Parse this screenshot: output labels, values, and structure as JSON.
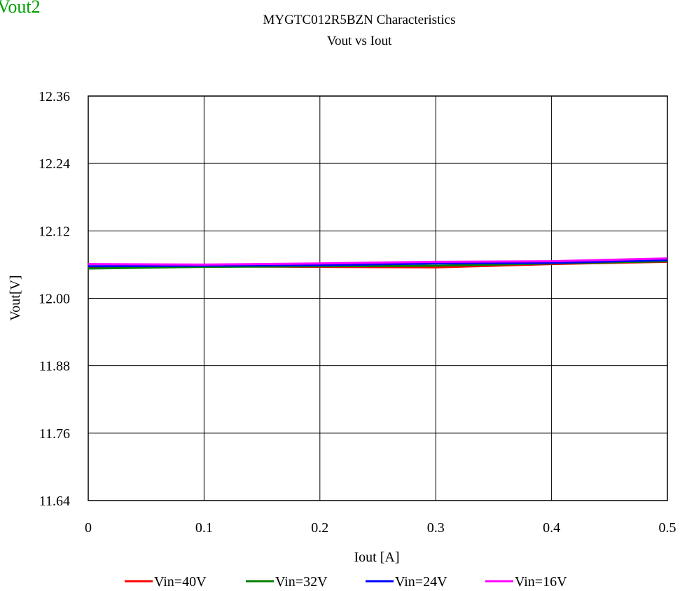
{
  "corner_label": "Vout2",
  "chart_data": {
    "type": "line",
    "title": "MYGTC012R5BZN Characteristics",
    "subtitle": "Vout vs Iout",
    "xlabel": "Iout [A]",
    "ylabel": "Vout[V]",
    "xlim": [
      0,
      0.5
    ],
    "ylim": [
      11.64,
      12.36
    ],
    "x_ticks": [
      0,
      0.1,
      0.2,
      0.3,
      0.4,
      0.5
    ],
    "x_tick_labels": [
      "0",
      "0.1",
      "0.2",
      "0.3",
      "0.4",
      "0.5"
    ],
    "y_ticks": [
      11.64,
      11.76,
      11.88,
      12.0,
      12.12,
      12.24,
      12.36
    ],
    "y_tick_labels": [
      "11.64",
      "11.76",
      "11.88",
      "12.00",
      "12.12",
      "12.24",
      "12.36"
    ],
    "grid": true,
    "legend_position": "bottom",
    "series": [
      {
        "name": "Vin=40V",
        "color": "#ff0000",
        "x": [
          0,
          0.1,
          0.2,
          0.3,
          0.4,
          0.5
        ],
        "y": [
          12.055,
          12.057,
          12.056,
          12.055,
          12.061,
          12.065
        ]
      },
      {
        "name": "Vin=32V",
        "color": "#008000",
        "x": [
          0,
          0.1,
          0.2,
          0.3,
          0.4,
          0.5
        ],
        "y": [
          12.053,
          12.056,
          12.057,
          12.058,
          12.062,
          12.066
        ]
      },
      {
        "name": "Vin=24V",
        "color": "#0000ff",
        "x": [
          0,
          0.1,
          0.2,
          0.3,
          0.4,
          0.5
        ],
        "y": [
          12.057,
          12.058,
          12.059,
          12.062,
          12.063,
          12.068
        ]
      },
      {
        "name": "Vin=16V",
        "color": "#ff00ff",
        "x": [
          0,
          0.1,
          0.2,
          0.3,
          0.4,
          0.5
        ],
        "y": [
          12.061,
          12.06,
          12.062,
          12.065,
          12.066,
          12.071
        ]
      }
    ]
  }
}
